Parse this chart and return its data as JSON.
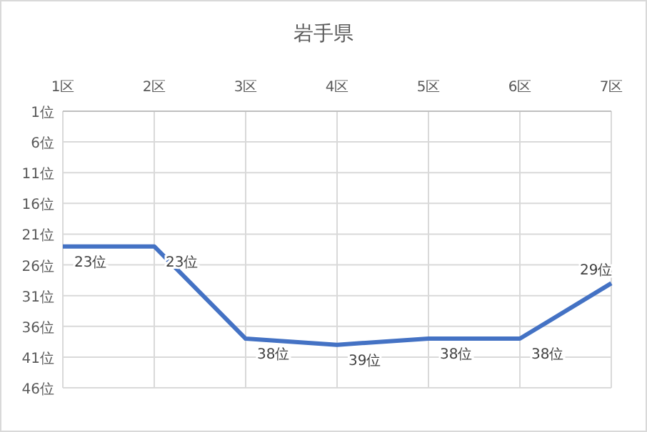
{
  "chart_data": {
    "type": "line",
    "title": "岩手県",
    "categories": [
      "1区",
      "2区",
      "3区",
      "4区",
      "5区",
      "6区",
      "7区"
    ],
    "series": [
      {
        "color": "#4472c4",
        "values": [
          23,
          23,
          38,
          39,
          38,
          38,
          29
        ],
        "value_labels": [
          "23位",
          "23位",
          "38位",
          "39位",
          "38位",
          "38位",
          "29位"
        ]
      }
    ],
    "ylim": [
      46,
      1
    ],
    "yticks": [
      {
        "value": 1,
        "label": "1位"
      },
      {
        "value": 6,
        "label": "6位"
      },
      {
        "value": 11,
        "label": "11位"
      },
      {
        "value": 16,
        "label": "16位"
      },
      {
        "value": 21,
        "label": "21位"
      },
      {
        "value": 26,
        "label": "26位"
      },
      {
        "value": 31,
        "label": "31位"
      },
      {
        "value": 36,
        "label": "36位"
      },
      {
        "value": 41,
        "label": "41位"
      },
      {
        "value": 46,
        "label": "46位"
      }
    ],
    "grid": true,
    "marker": "none",
    "line_style": "solid"
  }
}
